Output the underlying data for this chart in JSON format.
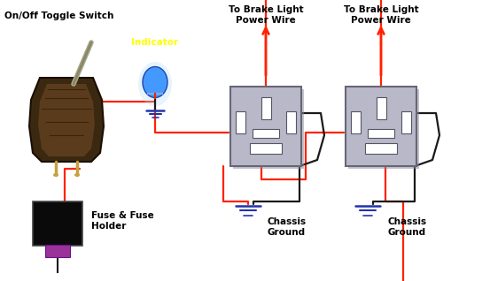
{
  "bg_color": "#000000",
  "red_wire": "#ff2200",
  "black_wire": "#111111",
  "blue_led_body": "#4499ff",
  "blue_led_glow": "#aaccff",
  "switch_box_face": "#b8b8c8",
  "switch_box_edge": "#666677",
  "ground_bar_color": "#2233aa",
  "label_color": "#000000",
  "indicator_label_color": "#ffff00",
  "toggle_body_color": "#4a3018",
  "toggle_edge_color": "#2a1a08",
  "toggle_lever_color": "#888870",
  "fuse_body_color": "#1a1a1a",
  "fuse_conn_color": "#993399",
  "labels": {
    "toggle_switch": "On/Off Toggle Switch",
    "indicator": "Indicator",
    "brake_power_1": "To Brake Light\nPower Wire",
    "brake_power_2": "To Brake Light\nPower Wire",
    "chassis_ground_1": "Chassis\nGround",
    "chassis_ground_2": "Chassis\nGround",
    "fuse": "Fuse & Fuse\nHolder"
  }
}
